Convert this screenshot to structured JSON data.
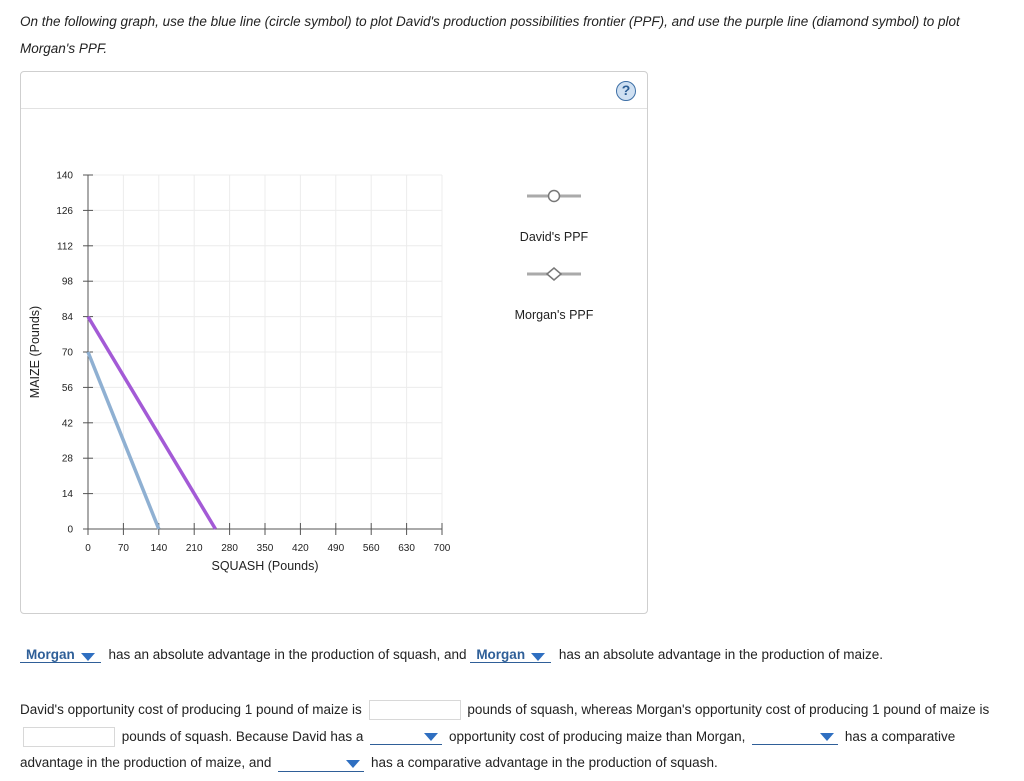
{
  "instructions": "On the following graph, use the blue line (circle symbol) to plot David's production possibilities frontier (PPF), and use the purple line (diamond symbol) to plot Morgan's PPF.",
  "help_label": "?",
  "colors": {
    "david": "#8fb0d2",
    "morgan": "#a35ad6",
    "accent": "#2f5f98"
  },
  "chart_data": {
    "type": "line",
    "xlabel": "SQUASH (Pounds)",
    "ylabel": "MAIZE (Pounds)",
    "xlim": [
      0,
      700
    ],
    "ylim": [
      0,
      140
    ],
    "xticks": [
      0,
      70,
      140,
      210,
      280,
      350,
      420,
      490,
      560,
      630,
      700
    ],
    "yticks": [
      0,
      14,
      28,
      42,
      56,
      70,
      84,
      98,
      112,
      126,
      140
    ],
    "grid": true,
    "legend_position": "right",
    "series": [
      {
        "name": "David's PPF",
        "symbol": "circle",
        "color": "#8fb0d2",
        "points": [
          [
            0,
            70
          ],
          [
            140,
            0
          ]
        ]
      },
      {
        "name": "Morgan's PPF",
        "symbol": "diamond",
        "color": "#a35ad6",
        "points": [
          [
            0,
            84
          ],
          [
            252,
            0
          ]
        ]
      }
    ]
  },
  "sentence1": {
    "dropdown1": "Morgan",
    "middle": "has an absolute advantage in the production of squash, and",
    "dropdown2": "Morgan",
    "end": "has an absolute advantage in the production of maize."
  },
  "para": {
    "p1": "David's opportunity cost of producing 1 pound of maize is",
    "p2": "pounds of squash, whereas Morgan's opportunity cost of producing 1 pound of maize is",
    "p3": "pounds of squash. Because David has a",
    "p4": "opportunity cost of producing maize than Morgan,",
    "p5": "has a comparative advantage in the production of maize, and",
    "p6": "has a comparative advantage in the production of squash."
  }
}
